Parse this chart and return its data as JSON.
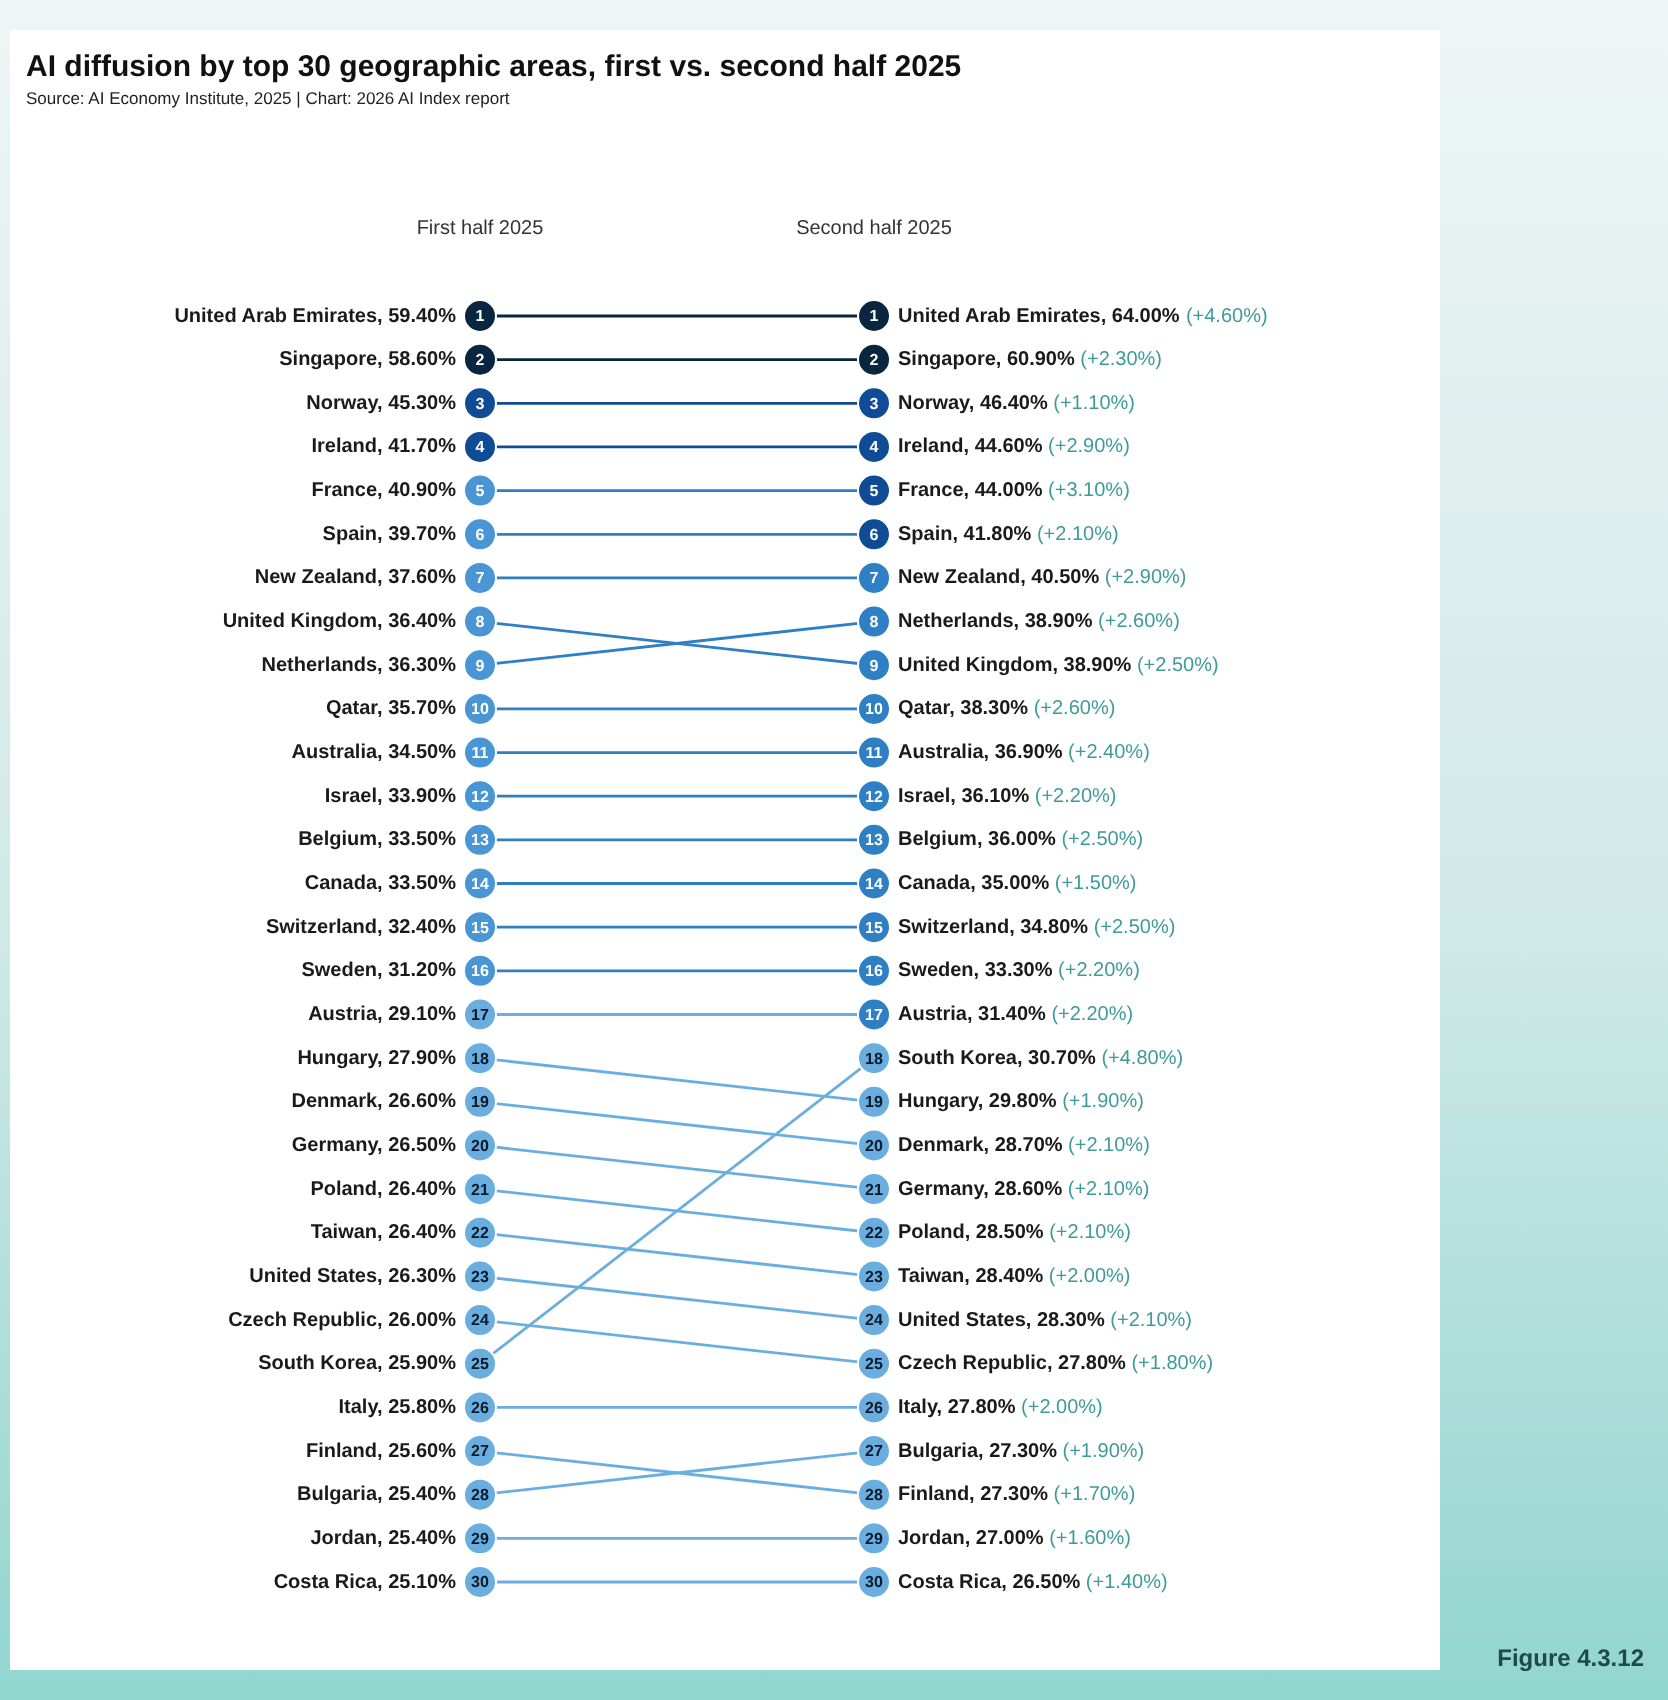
{
  "chart_data": {
    "type": "line",
    "title": "AI diffusion by top 30 geographic areas, first vs. second half 2025",
    "subtitle": "Source: AI Economy Institute, 2025 | Chart: 2026 AI Index report",
    "categories": [
      "First half 2025",
      "Second half 2025"
    ],
    "ylim": [
      30,
      1
    ],
    "yticks": [
      1,
      2,
      3,
      4,
      5,
      6,
      7,
      8,
      9,
      10,
      11,
      12,
      13,
      14,
      15,
      16,
      17,
      18,
      19,
      20,
      21,
      22,
      23,
      24,
      25,
      26,
      27,
      28,
      29,
      30
    ],
    "y2lim": [
      30,
      1
    ],
    "y2ticks": [
      1,
      2,
      3,
      4,
      5,
      6,
      7,
      8,
      9,
      10,
      11,
      12,
      13,
      14,
      15,
      16,
      17,
      18,
      19,
      20,
      21,
      22,
      23,
      24,
      25,
      26,
      27,
      28,
      29,
      30
    ],
    "grid": false,
    "legend": false,
    "marker": "circle",
    "line_style": "solid",
    "series": [
      {
        "color": "#0a2540",
        "colors": [
          "#0a2540",
          "#0a2540"
        ],
        "values": [
          1,
          1
        ]
      },
      {
        "color": "#0a2540",
        "colors": [
          "#0a2540",
          "#0a2540"
        ],
        "values": [
          2,
          2
        ]
      },
      {
        "color": "#0f4c95",
        "colors": [
          "#0f4c95",
          "#0f4c95"
        ],
        "values": [
          3,
          3
        ]
      },
      {
        "color": "#0f4c95",
        "colors": [
          "#0f4c95",
          "#0f4c95"
        ],
        "values": [
          4,
          4
        ]
      },
      {
        "color": "#2e7fc3",
        "colors": [
          "#4a95d3",
          "#0f4c95"
        ],
        "values": [
          5,
          5
        ]
      },
      {
        "color": "#2e7fc3",
        "colors": [
          "#4a95d3",
          "#0f4c95"
        ],
        "values": [
          6,
          6
        ]
      },
      {
        "color": "#2e7fc3",
        "colors": [
          "#4a95d3",
          "#2e7fc3"
        ],
        "values": [
          7,
          7
        ]
      },
      {
        "color": "#2e7fc3",
        "colors": [
          "#4a95d3",
          "#2e7fc3"
        ],
        "values": [
          8,
          9
        ]
      },
      {
        "color": "#2e7fc3",
        "colors": [
          "#4a95d3",
          "#2e7fc3"
        ],
        "values": [
          9,
          8
        ]
      },
      {
        "color": "#2e7fc3",
        "colors": [
          "#4a95d3",
          "#2e7fc3"
        ],
        "values": [
          10,
          10
        ]
      },
      {
        "color": "#2e7fc3",
        "colors": [
          "#4a95d3",
          "#2e7fc3"
        ],
        "values": [
          11,
          11
        ]
      },
      {
        "color": "#2e7fc3",
        "colors": [
          "#4a95d3",
          "#2e7fc3"
        ],
        "values": [
          12,
          12
        ]
      },
      {
        "color": "#2e7fc3",
        "colors": [
          "#4a95d3",
          "#2e7fc3"
        ],
        "values": [
          13,
          13
        ]
      },
      {
        "color": "#2e7fc3",
        "colors": [
          "#4a95d3",
          "#2e7fc3"
        ],
        "values": [
          14,
          14
        ]
      },
      {
        "color": "#2e7fc3",
        "colors": [
          "#4a95d3",
          "#2e7fc3"
        ],
        "values": [
          15,
          15
        ]
      },
      {
        "color": "#2e7fc3",
        "colors": [
          "#4a95d3",
          "#2e7fc3"
        ],
        "values": [
          16,
          16
        ]
      },
      {
        "color": "#6aaedf",
        "colors": [
          "#6aaedf",
          "#2e7fc3"
        ],
        "values": [
          17,
          17
        ]
      },
      {
        "color": "#6aaedf",
        "colors": [
          "#6aaedf",
          "#6aaedf"
        ],
        "values": [
          18,
          19
        ]
      },
      {
        "color": "#6aaedf",
        "colors": [
          "#6aaedf",
          "#6aaedf"
        ],
        "values": [
          19,
          20
        ]
      },
      {
        "color": "#6aaedf",
        "colors": [
          "#6aaedf",
          "#6aaedf"
        ],
        "values": [
          20,
          21
        ]
      },
      {
        "color": "#6aaedf",
        "colors": [
          "#6aaedf",
          "#6aaedf"
        ],
        "values": [
          21,
          22
        ]
      },
      {
        "color": "#6aaedf",
        "colors": [
          "#6aaedf",
          "#6aaedf"
        ],
        "values": [
          22,
          23
        ]
      },
      {
        "color": "#6aaedf",
        "colors": [
          "#6aaedf",
          "#6aaedf"
        ],
        "values": [
          23,
          24
        ]
      },
      {
        "color": "#6aaedf",
        "colors": [
          "#6aaedf",
          "#6aaedf"
        ],
        "values": [
          24,
          25
        ]
      },
      {
        "color": "#6aaedf",
        "colors": [
          "#6aaedf",
          "#6aaedf"
        ],
        "values": [
          25,
          18
        ]
      },
      {
        "color": "#6aaedf",
        "colors": [
          "#6aaedf",
          "#6aaedf"
        ],
        "values": [
          26,
          26
        ]
      },
      {
        "color": "#6aaedf",
        "colors": [
          "#6aaedf",
          "#6aaedf"
        ],
        "values": [
          27,
          28
        ]
      },
      {
        "color": "#6aaedf",
        "colors": [
          "#6aaedf",
          "#6aaedf"
        ],
        "values": [
          28,
          27
        ]
      },
      {
        "color": "#6aaedf",
        "colors": [
          "#6aaedf",
          "#6aaedf"
        ],
        "values": [
          29,
          29
        ]
      },
      {
        "color": "#6aaedf",
        "colors": [
          "#6aaedf",
          "#6aaedf"
        ],
        "values": [
          30,
          30
        ]
      }
    ],
    "annotations": [
      {
        "text": "United Arab Emirates, 59.40%",
        "x": "First half 2025",
        "y": 1
      },
      {
        "text": "United Arab Emirates, 64.00% (+4.60%)",
        "x": "Second half 2025",
        "y": 1
      },
      {
        "text": "Singapore, 58.60%",
        "x": "First half 2025",
        "y": 2
      },
      {
        "text": "Singapore, 60.90% (+2.30%)",
        "x": "Second half 2025",
        "y": 2
      },
      {
        "text": "Norway, 45.30%",
        "x": "First half 2025",
        "y": 3
      },
      {
        "text": "Norway, 46.40% (+1.10%)",
        "x": "Second half 2025",
        "y": 3
      },
      {
        "text": "Ireland, 41.70%",
        "x": "First half 2025",
        "y": 4
      },
      {
        "text": "Ireland, 44.60% (+2.90%)",
        "x": "Second half 2025",
        "y": 4
      },
      {
        "text": "France, 40.90%",
        "x": "First half 2025",
        "y": 5
      },
      {
        "text": "France, 44.00% (+3.10%)",
        "x": "Second half 2025",
        "y": 5
      },
      {
        "text": "Spain, 39.70%",
        "x": "First half 2025",
        "y": 6
      },
      {
        "text": "Spain, 41.80% (+2.10%)",
        "x": "Second half 2025",
        "y": 6
      },
      {
        "text": "New Zealand, 37.60%",
        "x": "First half 2025",
        "y": 7
      },
      {
        "text": "New Zealand, 40.50% (+2.90%)",
        "x": "Second half 2025",
        "y": 7
      },
      {
        "text": "United Kingdom, 36.40%",
        "x": "First half 2025",
        "y": 8
      },
      {
        "text": "United Kingdom, 38.90% (+2.50%)",
        "x": "Second half 2025",
        "y": 9
      },
      {
        "text": "Netherlands, 36.30%",
        "x": "First half 2025",
        "y": 9
      },
      {
        "text": "Netherlands, 38.90% (+2.60%)",
        "x": "Second half 2025",
        "y": 8
      },
      {
        "text": "Qatar, 35.70%",
        "x": "First half 2025",
        "y": 10
      },
      {
        "text": "Qatar, 38.30% (+2.60%)",
        "x": "Second half 2025",
        "y": 10
      },
      {
        "text": "Australia, 34.50%",
        "x": "First half 2025",
        "y": 11
      },
      {
        "text": "Australia, 36.90% (+2.40%)",
        "x": "Second half 2025",
        "y": 11
      },
      {
        "text": "Israel, 33.90%",
        "x": "First half 2025",
        "y": 12
      },
      {
        "text": "Israel, 36.10% (+2.20%)",
        "x": "Second half 2025",
        "y": 12
      },
      {
        "text": "Belgium, 33.50%",
        "x": "First half 2025",
        "y": 13
      },
      {
        "text": "Belgium, 36.00% (+2.50%)",
        "x": "Second half 2025",
        "y": 13
      },
      {
        "text": "Canada, 33.50%",
        "x": "First half 2025",
        "y": 14
      },
      {
        "text": "Canada, 35.00% (+1.50%)",
        "x": "Second half 2025",
        "y": 14
      },
      {
        "text": "Switzerland, 32.40%",
        "x": "First half 2025",
        "y": 15
      },
      {
        "text": "Switzerland, 34.80% (+2.50%)",
        "x": "Second half 2025",
        "y": 15
      },
      {
        "text": "Sweden, 31.20%",
        "x": "First half 2025",
        "y": 16
      },
      {
        "text": "Sweden, 33.30% (+2.20%)",
        "x": "Second half 2025",
        "y": 16
      },
      {
        "text": "Austria, 29.10%",
        "x": "First half 2025",
        "y": 17
      },
      {
        "text": "Austria, 31.40% (+2.20%)",
        "x": "Second half 2025",
        "y": 17
      },
      {
        "text": "Hungary, 27.90%",
        "x": "First half 2025",
        "y": 18
      },
      {
        "text": "Hungary, 29.80% (+1.90%)",
        "x": "Second half 2025",
        "y": 19
      },
      {
        "text": "Denmark, 26.60%",
        "x": "First half 2025",
        "y": 19
      },
      {
        "text": "Denmark, 28.70% (+2.10%)",
        "x": "Second half 2025",
        "y": 20
      },
      {
        "text": "Germany, 26.50%",
        "x": "First half 2025",
        "y": 20
      },
      {
        "text": "Germany, 28.60% (+2.10%)",
        "x": "Second half 2025",
        "y": 21
      },
      {
        "text": "Poland, 26.40%",
        "x": "First half 2025",
        "y": 21
      },
      {
        "text": "Poland, 28.50% (+2.10%)",
        "x": "Second half 2025",
        "y": 22
      },
      {
        "text": "Taiwan, 26.40%",
        "x": "First half 2025",
        "y": 22
      },
      {
        "text": "Taiwan, 28.40% (+2.00%)",
        "x": "Second half 2025",
        "y": 23
      },
      {
        "text": "United States, 26.30%",
        "x": "First half 2025",
        "y": 23
      },
      {
        "text": "United States, 28.30% (+2.10%)",
        "x": "Second half 2025",
        "y": 24
      },
      {
        "text": "Czech Republic, 26.00%",
        "x": "First half 2025",
        "y": 24
      },
      {
        "text": "Czech Republic, 27.80% (+1.80%)",
        "x": "Second half 2025",
        "y": 25
      },
      {
        "text": "South Korea, 25.90%",
        "x": "First half 2025",
        "y": 25
      },
      {
        "text": "South Korea, 30.70% (+4.80%)",
        "x": "Second half 2025",
        "y": 18
      },
      {
        "text": "Italy, 25.80%",
        "x": "First half 2025",
        "y": 26
      },
      {
        "text": "Italy, 27.80% (+2.00%)",
        "x": "Second half 2025",
        "y": 26
      },
      {
        "text": "Finland, 25.60%",
        "x": "First half 2025",
        "y": 27
      },
      {
        "text": "Finland, 27.30% (+1.70%)",
        "x": "Second half 2025",
        "y": 28
      },
      {
        "text": "Bulgaria, 25.40%",
        "x": "First half 2025",
        "y": 28
      },
      {
        "text": "Bulgaria, 27.30% (+1.90%)",
        "x": "Second half 2025",
        "y": 27
      },
      {
        "text": "Jordan, 25.40%",
        "x": "First half 2025",
        "y": 29
      },
      {
        "text": "Jordan, 27.00% (+1.60%)",
        "x": "Second half 2025",
        "y": 29
      },
      {
        "text": "Costa Rica, 25.10%",
        "x": "First half 2025",
        "y": 30
      },
      {
        "text": "Costa Rica, 26.50% (+1.40%)",
        "x": "Second half 2025",
        "y": 30
      },
      "Figure 4.3.12"
    ]
  }
}
